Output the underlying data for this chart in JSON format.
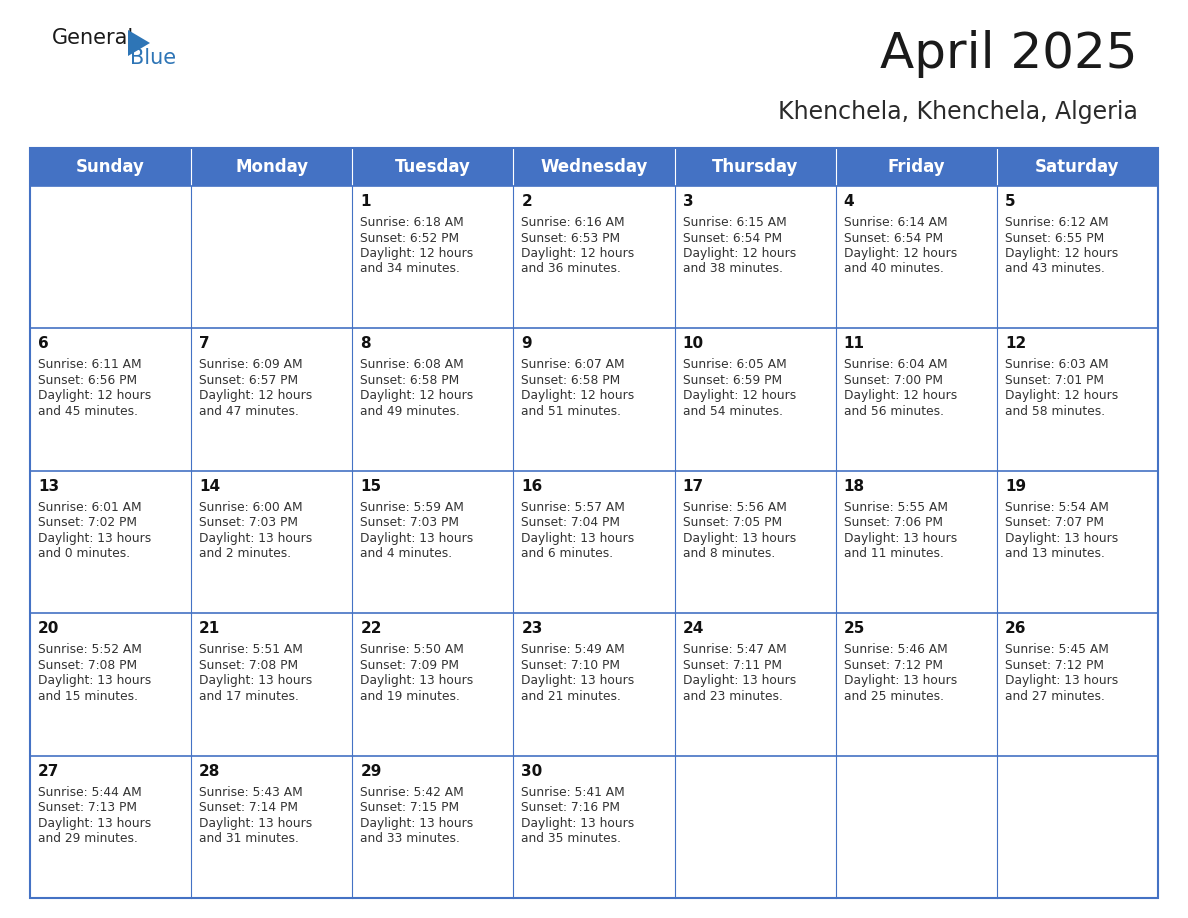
{
  "title": "April 2025",
  "subtitle": "Khenchela, Khenchela, Algeria",
  "days_of_week": [
    "Sunday",
    "Monday",
    "Tuesday",
    "Wednesday",
    "Thursday",
    "Friday",
    "Saturday"
  ],
  "header_bg": "#4472C4",
  "header_text": "#FFFFFF",
  "cell_bg": "#FFFFFF",
  "cell_bg_alt": "#F0F0F0",
  "border_color": "#4472C4",
  "title_color": "#1a1a1a",
  "subtitle_color": "#2a2a2a",
  "text_color": "#333333",
  "day_num_color": "#111111",
  "logo_general_color": "#1a1a1a",
  "logo_blue_color": "#2E75B6",
  "weeks": [
    [
      {
        "date": null
      },
      {
        "date": null
      },
      {
        "date": 1,
        "sunrise": "6:18 AM",
        "sunset": "6:52 PM",
        "daylight": "12 hours and 34 minutes."
      },
      {
        "date": 2,
        "sunrise": "6:16 AM",
        "sunset": "6:53 PM",
        "daylight": "12 hours and 36 minutes."
      },
      {
        "date": 3,
        "sunrise": "6:15 AM",
        "sunset": "6:54 PM",
        "daylight": "12 hours and 38 minutes."
      },
      {
        "date": 4,
        "sunrise": "6:14 AM",
        "sunset": "6:54 PM",
        "daylight": "12 hours and 40 minutes."
      },
      {
        "date": 5,
        "sunrise": "6:12 AM",
        "sunset": "6:55 PM",
        "daylight": "12 hours and 43 minutes."
      }
    ],
    [
      {
        "date": 6,
        "sunrise": "6:11 AM",
        "sunset": "6:56 PM",
        "daylight": "12 hours and 45 minutes."
      },
      {
        "date": 7,
        "sunrise": "6:09 AM",
        "sunset": "6:57 PM",
        "daylight": "12 hours and 47 minutes."
      },
      {
        "date": 8,
        "sunrise": "6:08 AM",
        "sunset": "6:58 PM",
        "daylight": "12 hours and 49 minutes."
      },
      {
        "date": 9,
        "sunrise": "6:07 AM",
        "sunset": "6:58 PM",
        "daylight": "12 hours and 51 minutes."
      },
      {
        "date": 10,
        "sunrise": "6:05 AM",
        "sunset": "6:59 PM",
        "daylight": "12 hours and 54 minutes."
      },
      {
        "date": 11,
        "sunrise": "6:04 AM",
        "sunset": "7:00 PM",
        "daylight": "12 hours and 56 minutes."
      },
      {
        "date": 12,
        "sunrise": "6:03 AM",
        "sunset": "7:01 PM",
        "daylight": "12 hours and 58 minutes."
      }
    ],
    [
      {
        "date": 13,
        "sunrise": "6:01 AM",
        "sunset": "7:02 PM",
        "daylight": "13 hours and 0 minutes."
      },
      {
        "date": 14,
        "sunrise": "6:00 AM",
        "sunset": "7:03 PM",
        "daylight": "13 hours and 2 minutes."
      },
      {
        "date": 15,
        "sunrise": "5:59 AM",
        "sunset": "7:03 PM",
        "daylight": "13 hours and 4 minutes."
      },
      {
        "date": 16,
        "sunrise": "5:57 AM",
        "sunset": "7:04 PM",
        "daylight": "13 hours and 6 minutes."
      },
      {
        "date": 17,
        "sunrise": "5:56 AM",
        "sunset": "7:05 PM",
        "daylight": "13 hours and 8 minutes."
      },
      {
        "date": 18,
        "sunrise": "5:55 AM",
        "sunset": "7:06 PM",
        "daylight": "13 hours and 11 minutes."
      },
      {
        "date": 19,
        "sunrise": "5:54 AM",
        "sunset": "7:07 PM",
        "daylight": "13 hours and 13 minutes."
      }
    ],
    [
      {
        "date": 20,
        "sunrise": "5:52 AM",
        "sunset": "7:08 PM",
        "daylight": "13 hours and 15 minutes."
      },
      {
        "date": 21,
        "sunrise": "5:51 AM",
        "sunset": "7:08 PM",
        "daylight": "13 hours and 17 minutes."
      },
      {
        "date": 22,
        "sunrise": "5:50 AM",
        "sunset": "7:09 PM",
        "daylight": "13 hours and 19 minutes."
      },
      {
        "date": 23,
        "sunrise": "5:49 AM",
        "sunset": "7:10 PM",
        "daylight": "13 hours and 21 minutes."
      },
      {
        "date": 24,
        "sunrise": "5:47 AM",
        "sunset": "7:11 PM",
        "daylight": "13 hours and 23 minutes."
      },
      {
        "date": 25,
        "sunrise": "5:46 AM",
        "sunset": "7:12 PM",
        "daylight": "13 hours and 25 minutes."
      },
      {
        "date": 26,
        "sunrise": "5:45 AM",
        "sunset": "7:12 PM",
        "daylight": "13 hours and 27 minutes."
      }
    ],
    [
      {
        "date": 27,
        "sunrise": "5:44 AM",
        "sunset": "7:13 PM",
        "daylight": "13 hours and 29 minutes."
      },
      {
        "date": 28,
        "sunrise": "5:43 AM",
        "sunset": "7:14 PM",
        "daylight": "13 hours and 31 minutes."
      },
      {
        "date": 29,
        "sunrise": "5:42 AM",
        "sunset": "7:15 PM",
        "daylight": "13 hours and 33 minutes."
      },
      {
        "date": 30,
        "sunrise": "5:41 AM",
        "sunset": "7:16 PM",
        "daylight": "13 hours and 35 minutes."
      },
      {
        "date": null
      },
      {
        "date": null
      },
      {
        "date": null
      }
    ]
  ]
}
